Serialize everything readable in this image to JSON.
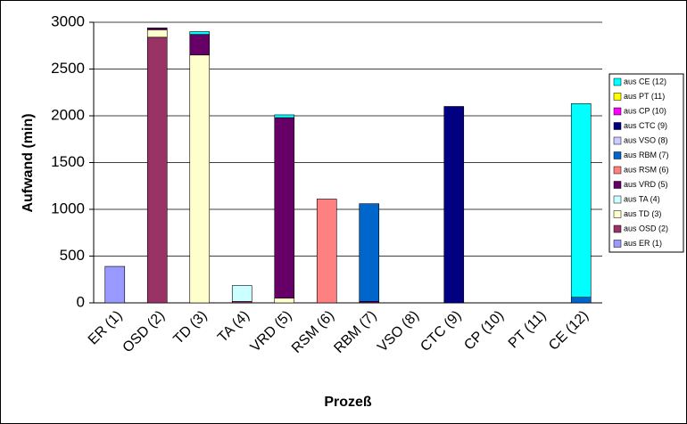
{
  "chart_data": {
    "type": "bar",
    "stacked": true,
    "x_label": "Prozeß",
    "y_label": "Aufwand (min)",
    "categories": [
      "ER (1)",
      "OSD (2)",
      "TD (3)",
      "TA (4)",
      "VRD (5)",
      "RSM (6)",
      "RBM (7)",
      "VSO (8)",
      "CTC (9)",
      "CP (10)",
      "PT (11)",
      "CE (12)"
    ],
    "series": [
      {
        "name": "aus ER (1)",
        "color": "#9999ff",
        "values": [
          390,
          null,
          null,
          null,
          null,
          null,
          null,
          null,
          null,
          null,
          null,
          null
        ]
      },
      {
        "name": "aus OSD (2)",
        "color": "#993366",
        "values": [
          null,
          2840,
          null,
          15,
          null,
          null,
          null,
          null,
          null,
          null,
          null,
          null
        ]
      },
      {
        "name": "aus TD (3)",
        "color": "#ffffcc",
        "values": [
          null,
          80,
          2650,
          null,
          50,
          null,
          null,
          null,
          null,
          null,
          null,
          null
        ]
      },
      {
        "name": "aus TA (4)",
        "color": "#ccffff",
        "values": [
          null,
          null,
          null,
          170,
          null,
          null,
          null,
          null,
          null,
          null,
          null,
          null
        ]
      },
      {
        "name": "aus VRD (5)",
        "color": "#660066",
        "values": [
          null,
          20,
          220,
          null,
          1930,
          null,
          15,
          null,
          null,
          null,
          null,
          null
        ]
      },
      {
        "name": "aus RSM (6)",
        "color": "#ff8080",
        "values": [
          null,
          null,
          null,
          null,
          null,
          1110,
          null,
          null,
          null,
          null,
          null,
          null
        ]
      },
      {
        "name": "aus RBM (7)",
        "color": "#0066cc",
        "values": [
          null,
          null,
          null,
          null,
          null,
          null,
          1045,
          null,
          null,
          null,
          null,
          60
        ]
      },
      {
        "name": "aus VSO (8)",
        "color": "#ccccff",
        "values": [
          null,
          null,
          null,
          null,
          null,
          null,
          null,
          null,
          null,
          null,
          null,
          null
        ]
      },
      {
        "name": "aus CTC (9)",
        "color": "#000080",
        "values": [
          null,
          null,
          null,
          null,
          null,
          null,
          null,
          null,
          2100,
          null,
          null,
          null
        ]
      },
      {
        "name": "aus CP (10)",
        "color": "#ff00ff",
        "values": [
          null,
          null,
          null,
          null,
          null,
          null,
          null,
          null,
          null,
          null,
          null,
          null
        ]
      },
      {
        "name": "aus PT (11)",
        "color": "#ffff00",
        "values": [
          null,
          null,
          null,
          null,
          null,
          null,
          null,
          null,
          null,
          null,
          null,
          null
        ]
      },
      {
        "name": "aus CE (12)",
        "color": "#00ffff",
        "values": [
          null,
          null,
          30,
          null,
          30,
          null,
          null,
          null,
          null,
          null,
          null,
          2070
        ]
      }
    ],
    "ylim": [
      0,
      3000
    ],
    "yticks": [
      0,
      500,
      1000,
      1500,
      2000,
      2500,
      3000
    ],
    "grid": true
  }
}
